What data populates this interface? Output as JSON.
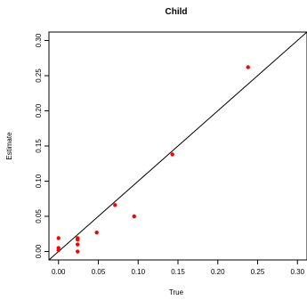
{
  "chart_data": {
    "type": "scatter",
    "title": "Child",
    "xlabel": "True",
    "ylabel": "Estimate",
    "xlim": [
      -0.012,
      0.312
    ],
    "ylim": [
      -0.012,
      0.312
    ],
    "x_ticks": [
      "0.00",
      "0.05",
      "0.10",
      "0.15",
      "0.20",
      "0.25",
      "0.30"
    ],
    "y_ticks": [
      "0.00",
      "0.05",
      "0.10",
      "0.15",
      "0.20",
      "0.25",
      "0.30"
    ],
    "reference_line": "y = x",
    "grid": false,
    "point_color": "#ff0000",
    "line_color": "#000000",
    "points": [
      {
        "x": 0.0,
        "y": 0.019
      },
      {
        "x": 0.0,
        "y": 0.005
      },
      {
        "x": 0.0,
        "y": 0.002
      },
      {
        "x": 0.024,
        "y": 0.019
      },
      {
        "x": 0.024,
        "y": 0.017
      },
      {
        "x": 0.024,
        "y": 0.01
      },
      {
        "x": 0.024,
        "y": 0.0
      },
      {
        "x": 0.048,
        "y": 0.027
      },
      {
        "x": 0.071,
        "y": 0.066
      },
      {
        "x": 0.095,
        "y": 0.05
      },
      {
        "x": 0.143,
        "y": 0.138
      },
      {
        "x": 0.238,
        "y": 0.262
      }
    ]
  }
}
